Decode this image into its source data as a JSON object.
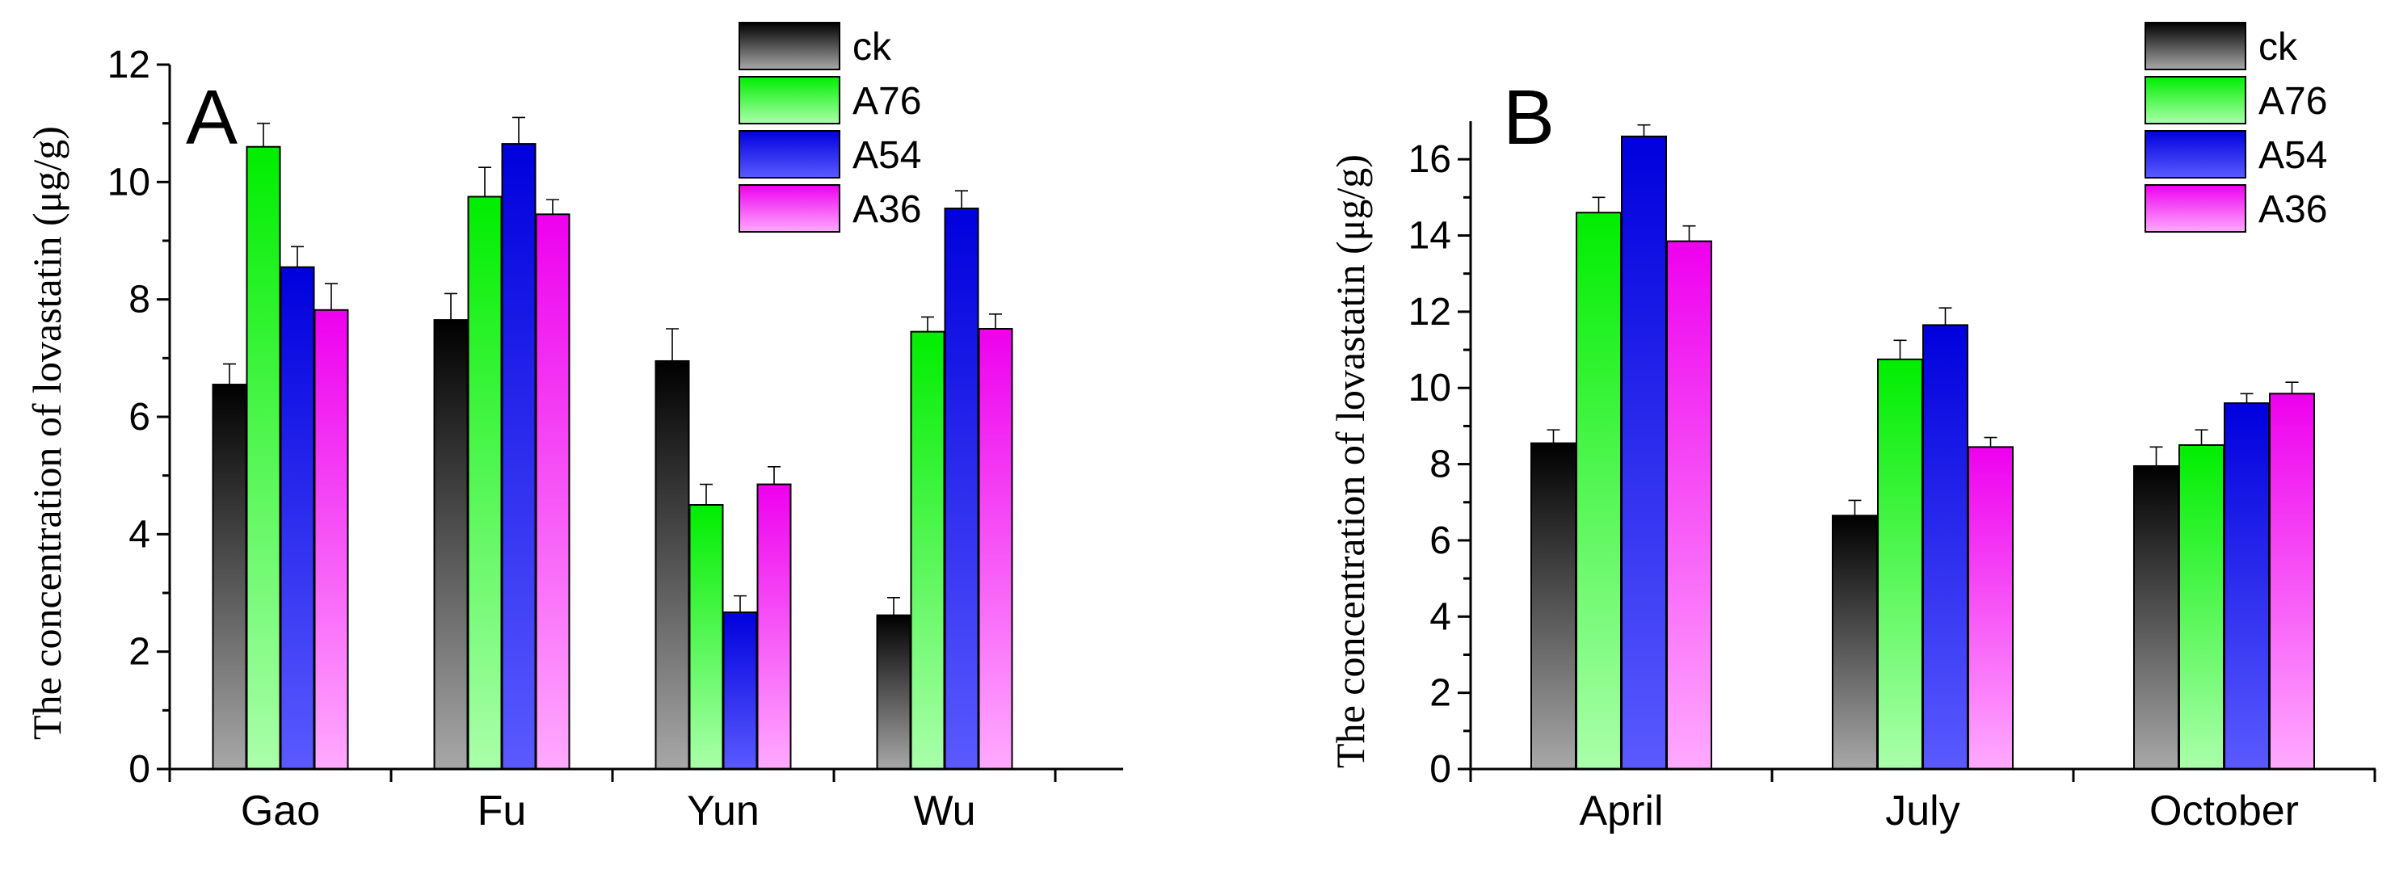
{
  "legend_order": [
    "ck",
    "A76",
    "A54",
    "A36"
  ],
  "series_colors": {
    "ck": {
      "top": "#000000",
      "bottom": "#a8a8a8"
    },
    "A76": {
      "top": "#00ee00",
      "bottom": "#aaffaa"
    },
    "A54": {
      "top": "#0000dd",
      "bottom": "#5a5aff"
    },
    "A36": {
      "top": "#ee00ee",
      "bottom": "#ffaaff"
    }
  },
  "chart_data": [
    {
      "type": "bar",
      "panel_label": "A",
      "title": "",
      "xlabel": "",
      "ylabel": "The concentration of lovastatin (μg/g)",
      "categories": [
        "Gao",
        "Fu",
        "Yun",
        "Wu"
      ],
      "ylim": [
        0,
        12
      ],
      "yticks": [
        0,
        2,
        4,
        6,
        8,
        10,
        12
      ],
      "series": [
        {
          "name": "ck",
          "values": [
            6.55,
            7.65,
            6.95,
            2.62
          ],
          "errors": [
            0.35,
            0.45,
            0.55,
            0.3
          ]
        },
        {
          "name": "A76",
          "values": [
            10.6,
            9.75,
            4.5,
            7.45
          ],
          "errors": [
            0.4,
            0.5,
            0.35,
            0.25
          ]
        },
        {
          "name": "A54",
          "values": [
            8.55,
            10.65,
            2.67,
            9.55
          ],
          "errors": [
            0.35,
            0.45,
            0.28,
            0.3
          ]
        },
        {
          "name": "A36",
          "values": [
            7.82,
            9.45,
            4.85,
            7.5
          ],
          "errors": [
            0.45,
            0.25,
            0.3,
            0.25
          ]
        }
      ],
      "legend": "top-right",
      "grid": false
    },
    {
      "type": "bar",
      "panel_label": "B",
      "title": "",
      "xlabel": "",
      "ylabel": "The concentration of lovastatin (μg/g)",
      "categories": [
        "April",
        "July",
        "October"
      ],
      "ylim": [
        0,
        17
      ],
      "yticks": [
        0,
        2,
        4,
        6,
        8,
        10,
        12,
        14,
        16
      ],
      "series": [
        {
          "name": "ck",
          "values": [
            8.55,
            6.65,
            7.95
          ],
          "errors": [
            0.35,
            0.4,
            0.5
          ]
        },
        {
          "name": "A76",
          "values": [
            14.6,
            10.75,
            8.5
          ],
          "errors": [
            0.4,
            0.5,
            0.4
          ]
        },
        {
          "name": "A54",
          "values": [
            16.6,
            11.65,
            9.6
          ],
          "errors": [
            0.3,
            0.45,
            0.25
          ]
        },
        {
          "name": "A36",
          "values": [
            13.85,
            8.45,
            9.85
          ],
          "errors": [
            0.4,
            0.25,
            0.3
          ]
        }
      ],
      "legend": "top-right",
      "grid": false
    }
  ]
}
